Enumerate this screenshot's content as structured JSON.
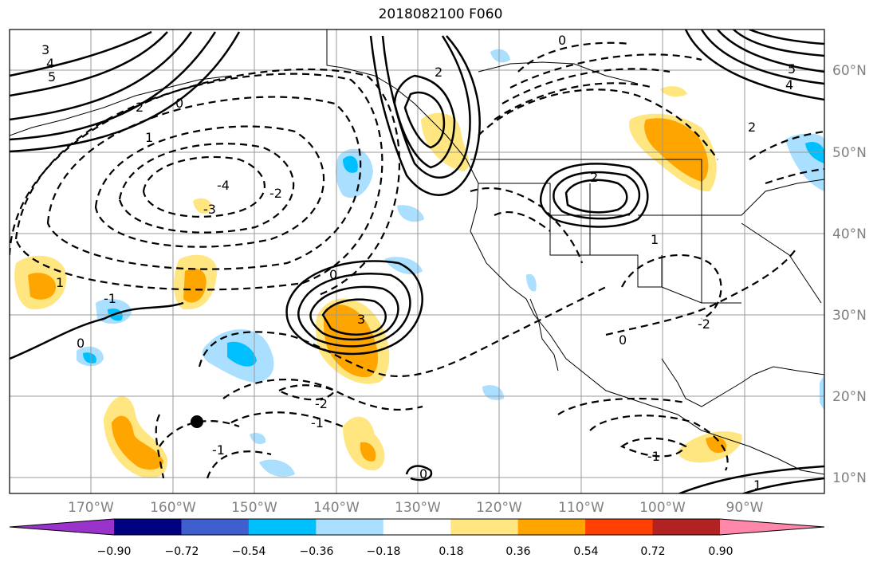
{
  "title": "2018082100 F060",
  "map": {
    "longitude_labels": [
      "170°W",
      "160°W",
      "150°W",
      "140°W",
      "130°W",
      "120°W",
      "110°W",
      "100°W",
      "90°W"
    ],
    "latitude_labels": [
      "60°N",
      "50°N",
      "40°N",
      "30°N",
      "20°N",
      "10°N"
    ],
    "label_color": "#808080",
    "gridline_color": "#999999",
    "contour_labels": [
      "3",
      "4",
      "5",
      "2",
      "1",
      "0",
      "-1",
      "-2",
      "-3",
      "-4",
      "0",
      "2",
      "1",
      "-1",
      "-2",
      "0",
      "2",
      "3",
      "4",
      "5",
      "-2",
      "-1",
      "0",
      "1",
      "2",
      "0",
      "-1",
      "1",
      "0"
    ]
  },
  "colorbar": {
    "tick_labels": [
      "−0.90",
      "−0.72",
      "−0.54",
      "−0.36",
      "−0.18",
      "0.18",
      "0.36",
      "0.54",
      "0.72",
      "0.90"
    ],
    "colors": [
      "#9933cc",
      "#000080",
      "#3f5fcf",
      "#00bfff",
      "#aadfff",
      "#ffffff",
      "#ffe680",
      "#ffa500",
      "#ff4000",
      "#b22222",
      "#ff88aa"
    ]
  }
}
